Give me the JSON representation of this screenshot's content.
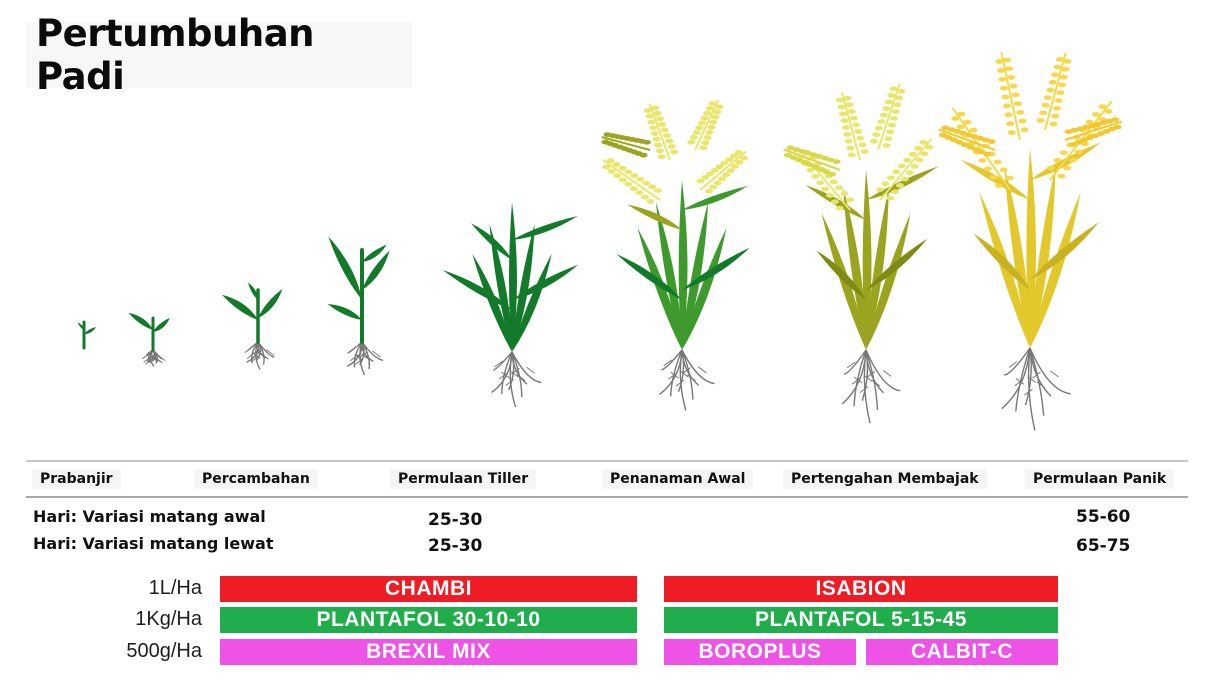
{
  "title": "Pertumbuhan Padi",
  "stages": [
    {
      "label": "Prabanjir"
    },
    {
      "label": "Percambahan"
    },
    {
      "label": "Permulaan Tiller"
    },
    {
      "label": "Penanaman Awal"
    },
    {
      "label": "Pertengahan Membajak"
    },
    {
      "label": "Permulaan Panik"
    }
  ],
  "maturity_rows": [
    {
      "label": "Hari: Variasi matang awal",
      "tiller_value": "25-30",
      "panicle_value": "55-60"
    },
    {
      "label": "Hari: Variasi matang lewat",
      "tiller_value": "25-30",
      "panicle_value": "65-75"
    }
  ],
  "rates": [
    "1L/Ha",
    "1Kg/Ha",
    "500g/Ha"
  ],
  "products": {
    "chambi": "CHAMBI",
    "isabion": "ISABION",
    "plantafol_a": "PLANTAFOL 30-10-10",
    "plantafol_b": "PLANTAFOL 5-15-45",
    "brexil": "BREXIL MIX",
    "boroplus": "BOROPLUS",
    "calbit": "CALBIT-C"
  },
  "colors": {
    "red": "#ee1c24",
    "green": "#1fae4b",
    "pink": "#ee52e6",
    "leaf_dark": "#127a2a",
    "leaf_mid": "#3f9a2d",
    "leaf_olive": "#9aa41e",
    "leaf_yellow": "#e2c82a",
    "grain_light": "#e9e66a",
    "grain_yellow": "#f6d84a",
    "root": "#777777"
  },
  "plant_icons": [
    "seedling-sprout-icon",
    "seedling-two-leaf-icon",
    "seedling-three-leaf-icon",
    "young-plant-icon",
    "tillering-plant-icon",
    "early-heading-plant-icon",
    "flowering-plant-icon",
    "mature-plant-icon"
  ]
}
